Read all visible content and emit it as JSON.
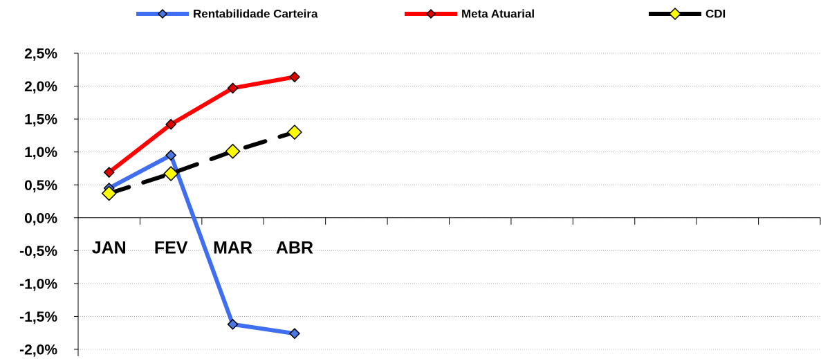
{
  "chart_data": {
    "type": "line",
    "categories": [
      "JAN",
      "FEV",
      "MAR",
      "ABR",
      null,
      null,
      null,
      null,
      null,
      null,
      null,
      null
    ],
    "series": [
      {
        "name": "Rentabilidade Carteira",
        "color": "#3f6ff0",
        "marker_color": "#4a78e0",
        "values": [
          0.45,
          0.95,
          -1.62,
          -1.76,
          null,
          null,
          null,
          null,
          null,
          null,
          null,
          null
        ]
      },
      {
        "name": "Meta Atuarial",
        "color": "#ff0000",
        "marker_color": "#e00000",
        "values": [
          0.69,
          1.42,
          1.97,
          2.14,
          null,
          null,
          null,
          null,
          null,
          null,
          null,
          null
        ]
      },
      {
        "name": "CDI",
        "color": "#000000",
        "marker_color": "#ffff00",
        "dashed": true,
        "values": [
          0.37,
          0.67,
          1.01,
          1.3,
          null,
          null,
          null,
          null,
          null,
          null,
          null,
          null
        ]
      }
    ],
    "ylim": [
      -2.0,
      2.5
    ],
    "yticks": [
      {
        "value": -2.0,
        "label": "-2,0%"
      },
      {
        "value": -1.5,
        "label": "-1,5%"
      },
      {
        "value": -1.0,
        "label": "-1,0%"
      },
      {
        "value": -0.5,
        "label": "-0,5%"
      },
      {
        "value": 0.0,
        "label": "0,0%"
      },
      {
        "value": 0.5,
        "label": "0,5%"
      },
      {
        "value": 1.0,
        "label": "1,0%"
      },
      {
        "value": 1.5,
        "label": "1,5%"
      },
      {
        "value": 2.0,
        "label": "2,0%"
      },
      {
        "value": 2.5,
        "label": "2,5%"
      }
    ],
    "grid": true,
    "legend": "top"
  }
}
